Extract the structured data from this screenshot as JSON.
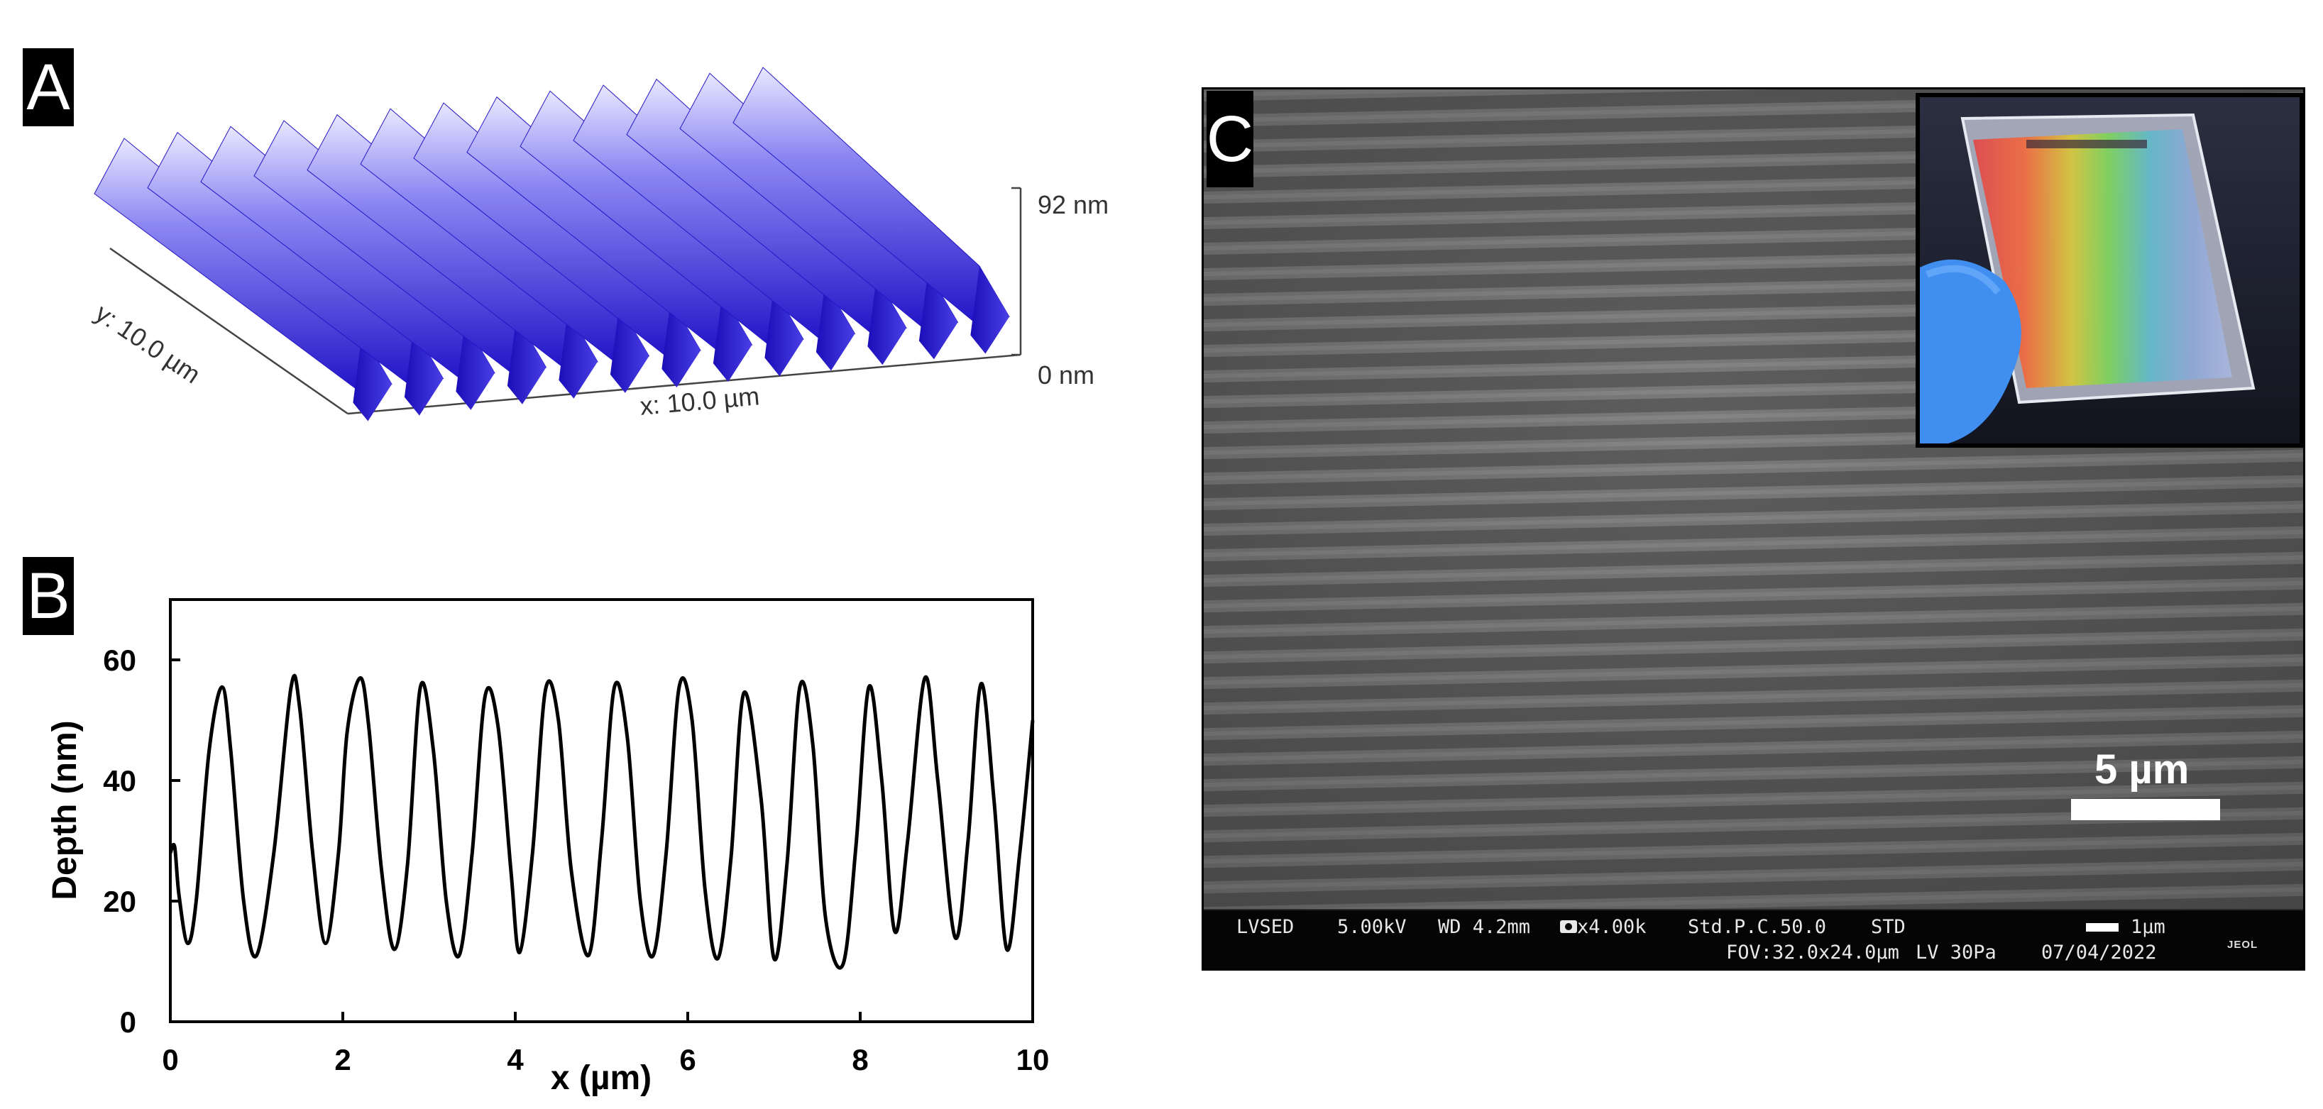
{
  "panels": {
    "a": {
      "letter": "A",
      "z_max_label": "92 nm",
      "z_min_label": "0 nm",
      "x_label": "x: 10.0 µm",
      "y_label": "y: 10.0 µm",
      "surface_color": "#3a2fe0"
    },
    "b": {
      "letter": "B"
    },
    "c": {
      "letter": "C",
      "scale_label": "5 µm",
      "info": {
        "mode": "LVSED",
        "voltage": "5.00kV",
        "wd": "WD 4.2mm",
        "magnification": "x4.00k",
        "std": "Std.P.C.50.0",
        "std2": "STD",
        "small_scale": "1µm",
        "fov": "FOV:32.0x24.0µm",
        "lv": "LV 30Pa",
        "date": "07/04/2022",
        "brand": "JEOL"
      }
    }
  },
  "chart_data": {
    "type": "line",
    "title": "",
    "xlabel": "x (µm)",
    "ylabel": "Depth (nm)",
    "xlim": [
      0,
      10
    ],
    "ylim": [
      0,
      70
    ],
    "xticks": [
      0,
      2,
      4,
      6,
      8,
      10
    ],
    "yticks": [
      0,
      20,
      40,
      60
    ],
    "grid": false,
    "series": [
      {
        "color": "#000000",
        "x": [
          0.0,
          0.05,
          0.1,
          0.2,
          0.3,
          0.45,
          0.6,
          0.7,
          0.85,
          1.0,
          1.2,
          1.4,
          1.5,
          1.65,
          1.8,
          1.95,
          2.05,
          2.2,
          2.3,
          2.45,
          2.6,
          2.75,
          2.9,
          3.05,
          3.2,
          3.35,
          3.5,
          3.65,
          3.8,
          3.95,
          4.05,
          4.2,
          4.35,
          4.5,
          4.65,
          4.85,
          5.0,
          5.15,
          5.3,
          5.45,
          5.6,
          5.75,
          5.9,
          6.05,
          6.2,
          6.35,
          6.5,
          6.65,
          6.85,
          7.0,
          7.15,
          7.3,
          7.45,
          7.6,
          7.8,
          7.95,
          8.1,
          8.25,
          8.4,
          8.55,
          8.75,
          8.9,
          9.1,
          9.25,
          9.4,
          9.55,
          9.7,
          9.85,
          10.0
        ],
        "y": [
          28,
          29,
          21,
          13,
          20,
          45,
          55.5,
          45,
          20,
          11,
          28,
          55.5,
          52,
          28,
          13,
          28,
          48,
          57,
          49,
          25,
          12,
          26,
          55.5,
          45,
          20,
          11,
          28,
          54,
          49,
          25,
          11.5,
          28,
          55,
          50,
          25,
          11,
          30,
          55.5,
          47,
          20,
          11,
          28,
          55.5,
          50,
          22,
          10.5,
          27,
          54.5,
          37,
          10.5,
          26,
          55.5,
          46,
          17,
          9.5,
          29,
          55.5,
          40,
          15,
          30,
          57,
          40,
          14,
          30,
          56,
          37,
          12,
          28,
          50
        ]
      }
    ]
  }
}
